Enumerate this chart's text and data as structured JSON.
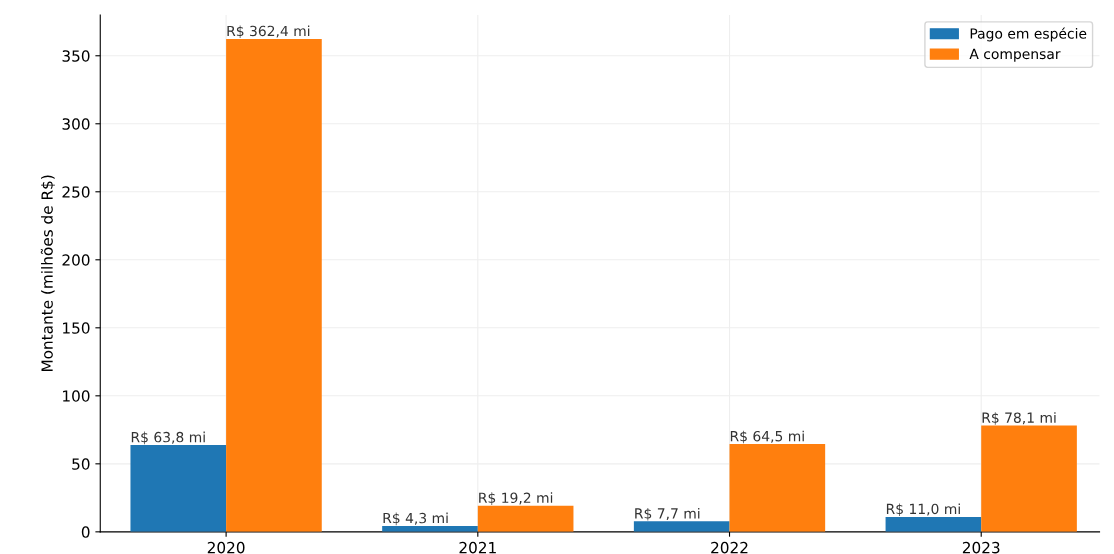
{
  "chart_data": {
    "type": "bar",
    "ylabel": "Montante (milhões de R$)",
    "categories": [
      "2020",
      "2021",
      "2022",
      "2023"
    ],
    "series": [
      {
        "name": "Pago em espécie",
        "color": "#1f77b4",
        "values": [
          63.8,
          4.3,
          7.7,
          11.0
        ],
        "value_labels": [
          "R$ 63,8 mi",
          "R$ 4,3 mi",
          "R$ 7,7 mi",
          "R$ 11,0 mi"
        ]
      },
      {
        "name": "A compensar",
        "color": "#ff7f0e",
        "values": [
          362.4,
          19.2,
          64.5,
          78.1
        ],
        "value_labels": [
          "R$ 362,4 mi",
          "R$ 19,2 mi",
          "R$ 64,5 mi",
          "R$ 78,1 mi"
        ]
      }
    ],
    "ylim": [
      0,
      380
    ],
    "yticks": [
      0,
      50,
      100,
      150,
      200,
      250,
      300,
      350
    ],
    "grid": true,
    "legend": "top right"
  }
}
